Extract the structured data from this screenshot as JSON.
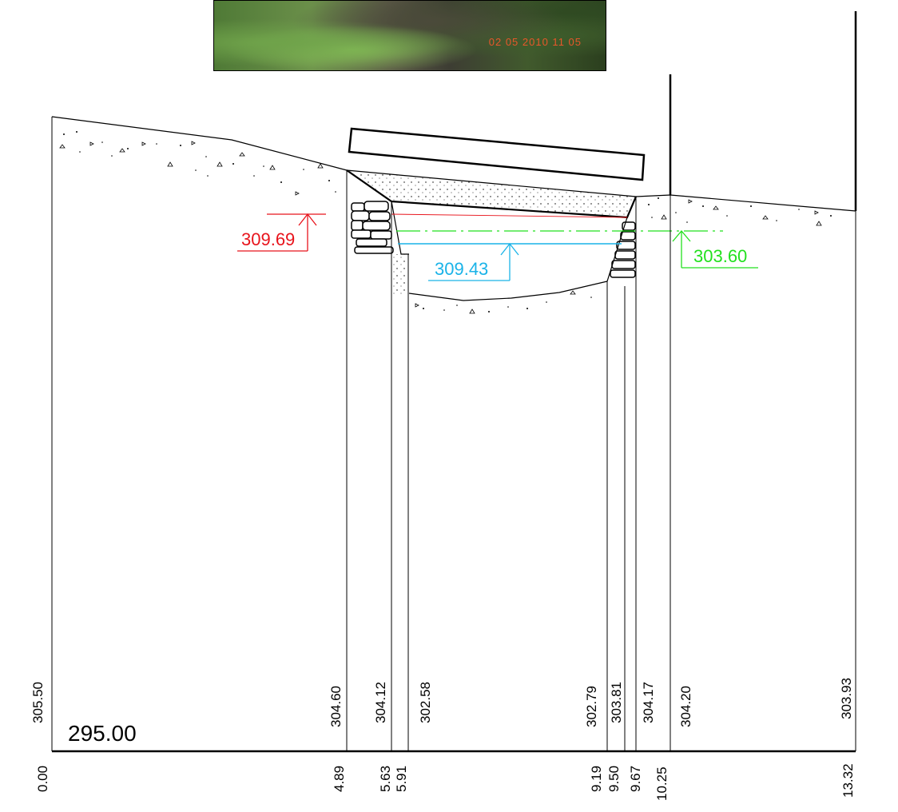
{
  "photo": {
    "timestamp": "02 05 2010 11 05"
  },
  "levels": {
    "red": {
      "value": "309.69",
      "color": "#e8141c"
    },
    "blue": {
      "value": "309.43",
      "color": "#1ab3e8"
    },
    "green": {
      "value": "303.60",
      "color": "#22e01e"
    }
  },
  "datum": "295.00",
  "elevations": [
    "305.50",
    "304.60",
    "304.12",
    "302.58",
    "302.79",
    "303.81",
    "304.17",
    "304.20",
    "303.93"
  ],
  "distances": [
    "0.00",
    "4.89",
    "5.63",
    "5.91",
    "9.19",
    "9.50",
    "9.67",
    "10.25",
    "13.32"
  ]
}
